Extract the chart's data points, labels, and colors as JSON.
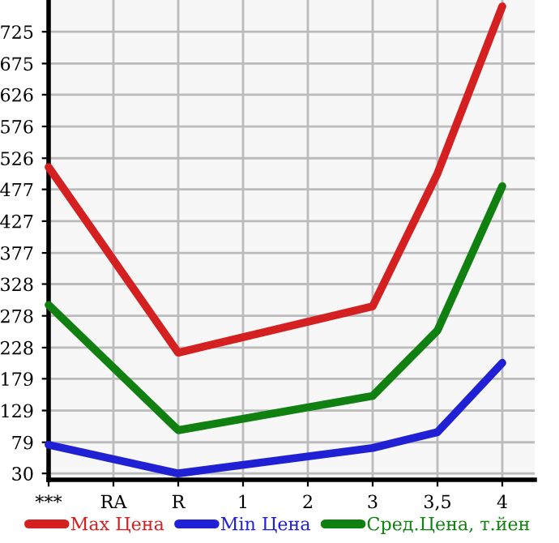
{
  "chart_data": {
    "type": "line",
    "categories": [
      "***",
      "RA",
      "R",
      "1",
      "2",
      "3",
      "3,5",
      "4"
    ],
    "series": [
      {
        "name": "Max Цена",
        "color": "#d42020",
        "values": [
          512,
          null,
          220,
          null,
          null,
          293,
          502,
          765
        ]
      },
      {
        "name": "Min Цена",
        "color": "#2020d4",
        "values": [
          75,
          null,
          30,
          null,
          null,
          70,
          95,
          204
        ]
      },
      {
        "name": "Сред.Цена, т.йен",
        "color": "#108010",
        "values": [
          295,
          null,
          98,
          null,
          null,
          152,
          255,
          482
        ]
      }
    ],
    "ylim": [
      20,
      775
    ],
    "yticks": [
      30,
      79,
      129,
      179,
      228,
      278,
      328,
      377,
      427,
      477,
      526,
      576,
      626,
      675,
      725
    ],
    "grid": true,
    "legend": "bottom",
    "marker": "none",
    "line_style": "solid"
  }
}
